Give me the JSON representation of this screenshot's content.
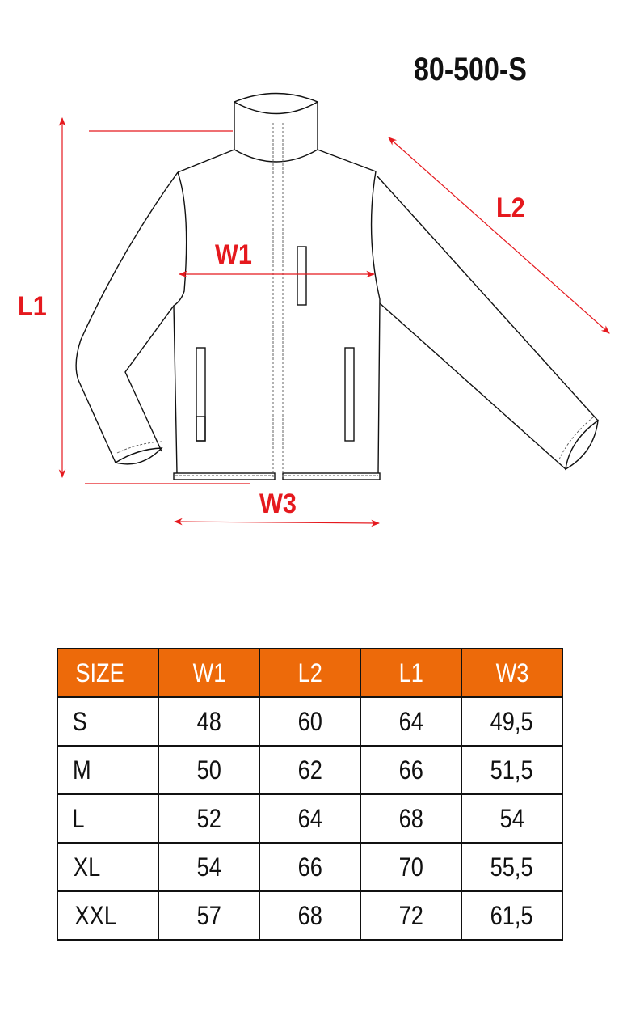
{
  "product_code": "80-500-S",
  "accent_color": "#E5191E",
  "header_color": "#ED6A0A",
  "diagram": {
    "subject": "jacket",
    "labels": {
      "l1": "L1",
      "w1": "W1",
      "l2": "L2",
      "w3": "W3"
    }
  },
  "table": {
    "headers": [
      "SIZE",
      "W1",
      "L2",
      "L1",
      "W3"
    ],
    "rows": [
      [
        "S",
        "48",
        "60",
        "64",
        "49,5"
      ],
      [
        "M",
        "50",
        "62",
        "66",
        "51,5"
      ],
      [
        "L",
        "52",
        "64",
        "68",
        "54"
      ],
      [
        "XL",
        "54",
        "66",
        "70",
        "55,5"
      ],
      [
        "XXL",
        "57",
        "68",
        "72",
        "61,5"
      ]
    ]
  }
}
